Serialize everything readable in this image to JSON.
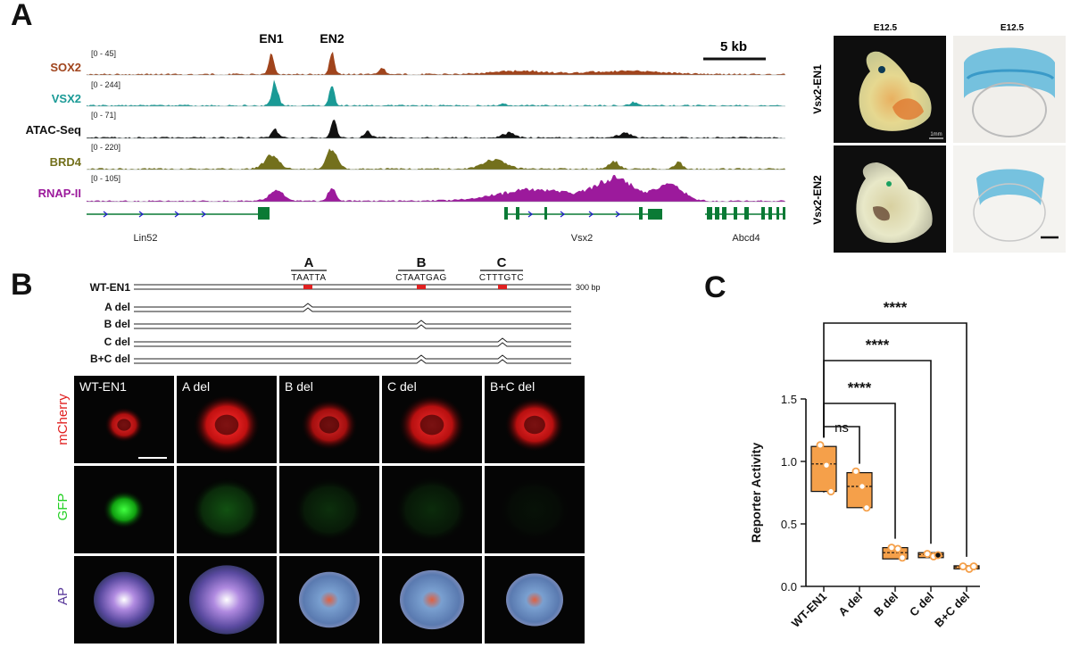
{
  "panels": {
    "a": "A",
    "b": "B",
    "c": "C"
  },
  "panel_a": {
    "enhancers": [
      "EN1",
      "EN2"
    ],
    "scale_bar": "5 kb",
    "tracks": [
      {
        "name": "SOX2",
        "range": "[0 - 45]",
        "color": "#a0441c"
      },
      {
        "name": "VSX2",
        "range": "[0 - 244]",
        "color": "#1a9a96"
      },
      {
        "name": "ATAC-Seq",
        "range": "[0 - 71]",
        "color": "#111111"
      },
      {
        "name": "BRD4",
        "range": "[0 - 220]",
        "color": "#73701c"
      },
      {
        "name": "RNAP-II",
        "range": "[0 - 105]",
        "color": "#9c1a9c"
      }
    ],
    "genes": [
      "Lin52",
      "Vsx2",
      "Abcd4"
    ],
    "gene_color": "#0a7a35",
    "embryo": {
      "stage_labels": [
        "E12.5",
        "E12.5"
      ],
      "row_labels": [
        "Vsx2-EN1",
        "Vsx2-EN2"
      ],
      "scale_label": "1mm"
    }
  },
  "panel_b": {
    "sites": [
      {
        "letter": "A",
        "seq": "TAATTA"
      },
      {
        "letter": "B",
        "seq": "CTAATGAG"
      },
      {
        "letter": "C",
        "seq": "CTTTGTC"
      }
    ],
    "length_label": "300 bp",
    "constructs": [
      "WT-EN1",
      "A del",
      "B del",
      "C del",
      "B+C del"
    ],
    "image_columns": [
      "WT-EN1",
      "A del",
      "B del",
      "C del",
      "B+C del"
    ],
    "image_rows": [
      {
        "label": "mCherry",
        "color": "#e02020"
      },
      {
        "label": "GFP",
        "color": "#22d022"
      },
      {
        "label": "AP",
        "color": "#5a3a9a"
      }
    ]
  },
  "chart_data": {
    "type": "boxplot",
    "ylabel": "Reporter Activity",
    "ylim": [
      0,
      1.5
    ],
    "yticks": [
      "0.0",
      "0.5",
      "1.0",
      "1.5"
    ],
    "categories": [
      "WT-EN1",
      "A del",
      "B del",
      "C del",
      "B+C del"
    ],
    "boxes": [
      {
        "min": 0.75,
        "q1": 0.76,
        "median": 0.98,
        "q3": 1.12,
        "max": 1.12
      },
      {
        "min": 0.63,
        "q1": 0.63,
        "median": 0.8,
        "q3": 0.91,
        "max": 0.91
      },
      {
        "min": 0.22,
        "q1": 0.22,
        "median": 0.27,
        "q3": 0.31,
        "max": 0.31
      },
      {
        "min": 0.23,
        "q1": 0.23,
        "median": 0.255,
        "q3": 0.27,
        "max": 0.27
      },
      {
        "min": 0.14,
        "q1": 0.14,
        "median": 0.155,
        "q3": 0.165,
        "max": 0.165
      }
    ],
    "points": [
      [
        1.13,
        0.97,
        0.76
      ],
      [
        0.92,
        0.8,
        0.63
      ],
      [
        0.31,
        0.3,
        0.23
      ],
      [
        0.26,
        0.24,
        0.25
      ],
      [
        0.16,
        0.14,
        0.16
      ]
    ],
    "comparisons": [
      {
        "from": "WT-EN1",
        "to": "A del",
        "label": "ns"
      },
      {
        "from": "WT-EN1",
        "to": "B del",
        "label": "****"
      },
      {
        "from": "WT-EN1",
        "to": "C del",
        "label": "****"
      },
      {
        "from": "WT-EN1",
        "to": "B+C del",
        "label": "****"
      }
    ],
    "box_color": "#f5a04a"
  }
}
